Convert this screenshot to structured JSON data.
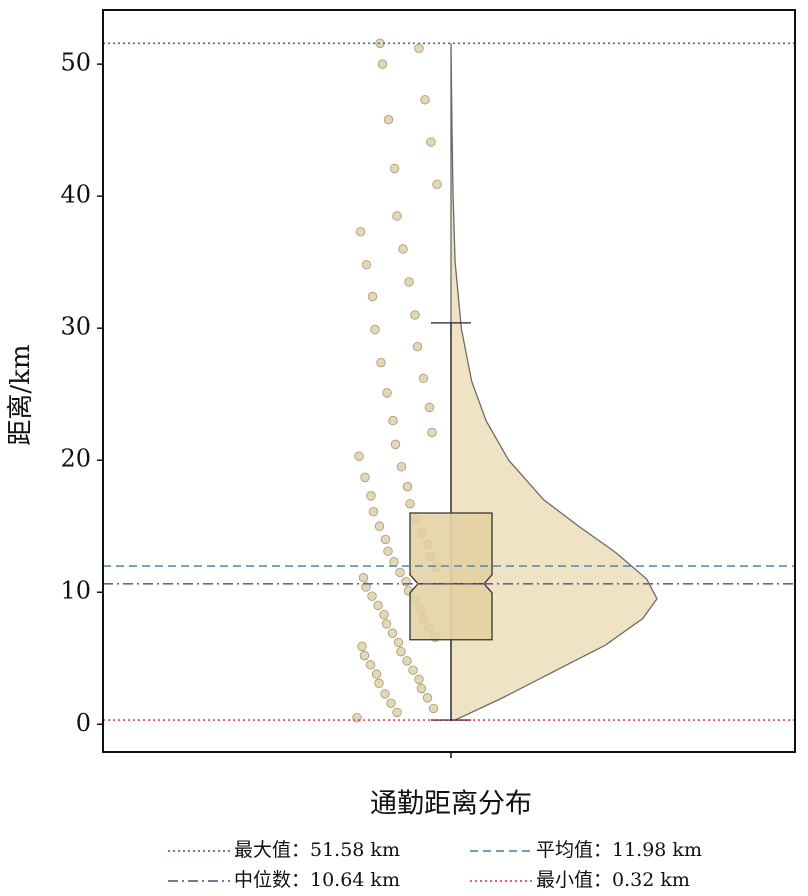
{
  "chart_data": {
    "type": "raincloud",
    "ylabel": "距离/km",
    "categories": [
      "通勤距离分布"
    ],
    "ylim": [
      -2.1,
      54.1
    ],
    "yticks": [
      0,
      10,
      20,
      30,
      40,
      50
    ],
    "box": {
      "whisker_low": 0.32,
      "q1": 6.4,
      "median": 10.64,
      "q3": 16.0,
      "whisker_high": 30.4,
      "color": "#e3d0a0"
    },
    "violin": {
      "y": [
        0.32,
        2,
        4,
        6,
        8,
        9.5,
        11,
        13,
        15,
        17,
        20,
        23,
        26,
        30,
        35,
        40,
        45,
        51.58
      ],
      "density": [
        0.02,
        0.25,
        0.5,
        0.75,
        0.93,
        1.0,
        0.95,
        0.8,
        0.62,
        0.45,
        0.28,
        0.17,
        0.1,
        0.05,
        0.02,
        0.01,
        0.005,
        0
      ],
      "color": "#efe3c3"
    },
    "points": {
      "color": "#d8c9a0",
      "values": [
        0.5,
        0.9,
        1.2,
        1.6,
        2.0,
        2.3,
        2.7,
        3.1,
        3.4,
        3.8,
        4.1,
        4.5,
        4.8,
        5.2,
        5.5,
        5.9,
        6.2,
        6.6,
        6.9,
        7.3,
        7.6,
        8.0,
        8.3,
        8.7,
        9.0,
        9.4,
        9.7,
        10.1,
        10.4,
        10.8,
        11.1,
        11.5,
        11.9,
        12.3,
        12.7,
        13.1,
        13.6,
        14.0,
        14.5,
        15.0,
        15.5,
        16.1,
        16.7,
        17.3,
        18.0,
        18.7,
        19.5,
        20.3,
        21.2,
        22.1,
        23.0,
        24.0,
        25.1,
        26.2,
        27.4,
        28.6,
        29.9,
        31.0,
        32.4,
        33.5,
        34.8,
        36.0,
        37.3,
        38.5,
        40.9,
        42.1,
        44.1,
        45.8,
        47.3,
        50.0,
        51.2,
        51.58
      ]
    },
    "reference_lines": [
      {
        "name": "最大值：51.58 km",
        "value": 51.58,
        "color": "#4a6fa5",
        "style": "dotted"
      },
      {
        "name": "平均值：11.98 km",
        "value": 11.98,
        "color": "#5b8db8",
        "style": "dashed"
      },
      {
        "name": "中位数：10.64 km",
        "value": 10.64,
        "color": "#7a5c8a",
        "style": "dashdot"
      },
      {
        "name": "最小值：0.32 km",
        "value": 0.32,
        "color": "#e0455a",
        "style": "dotted"
      }
    ]
  }
}
